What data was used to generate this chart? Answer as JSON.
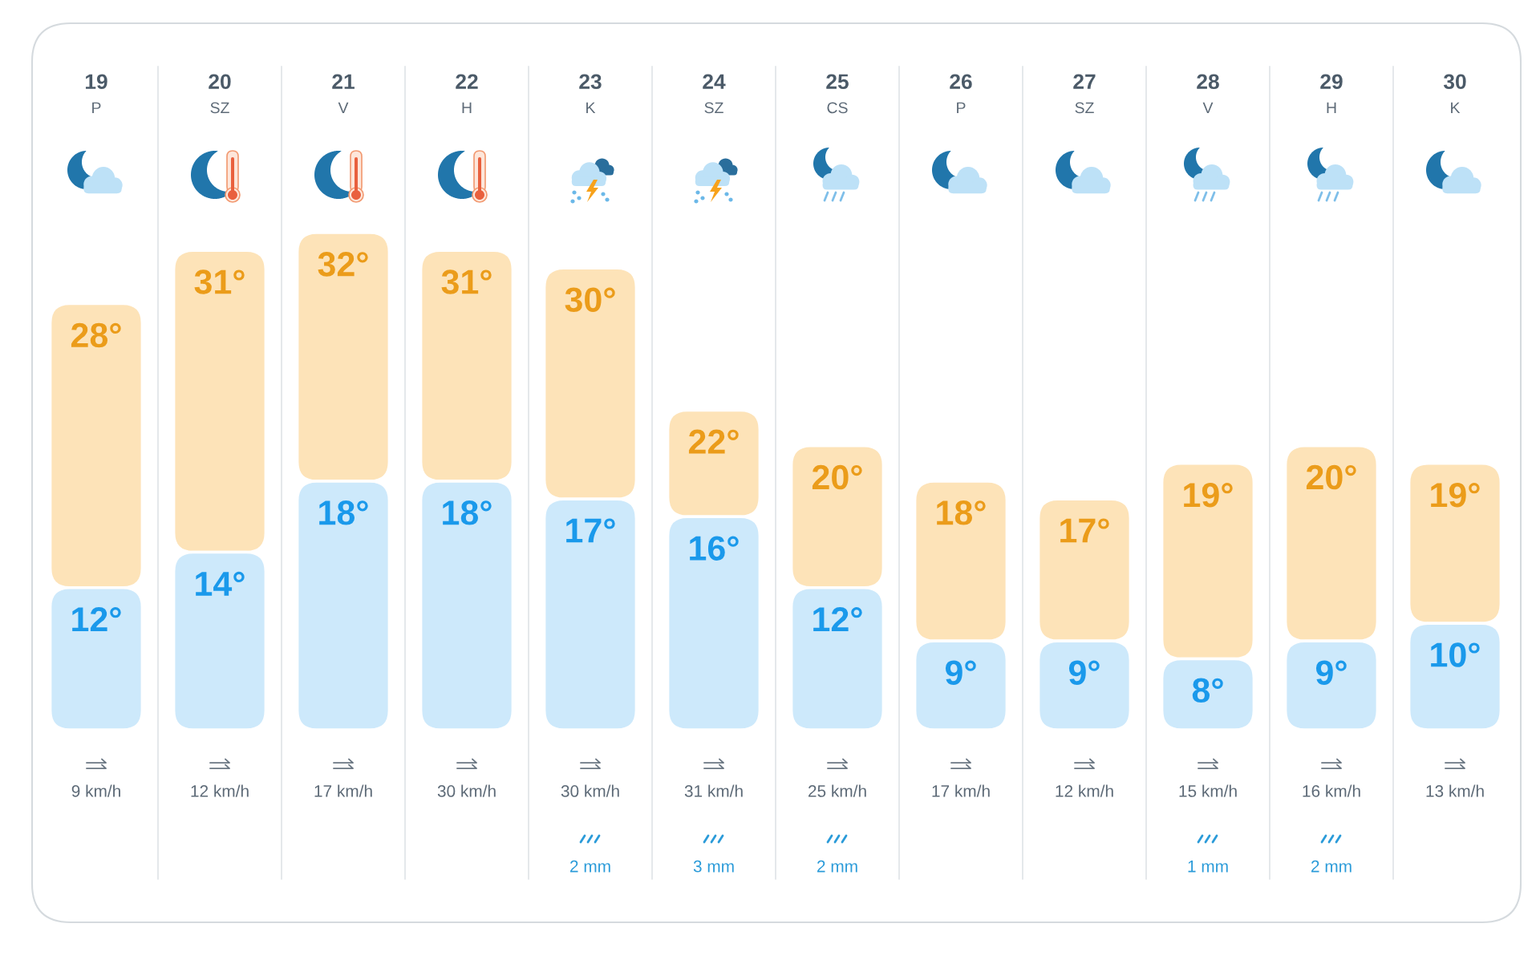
{
  "chart_data": [
    {
      "type": "bar",
      "stacked": true,
      "categories": [
        "19\nP",
        "20\nSZ",
        "21\nV",
        "22\nH",
        "23\nK",
        "24\nSZ",
        "25\nCS",
        "26\nP",
        "27\nSZ",
        "28\nV",
        "29\nH",
        "30\nK"
      ],
      "series": [
        {
          "color": "#cde9fb",
          "values": [
            12,
            14,
            18,
            18,
            17,
            16,
            12,
            9,
            9,
            8,
            9,
            10
          ],
          "value_labels": [
            "12°",
            "14°",
            "18°",
            "18°",
            "17°",
            "16°",
            "12°",
            "9°",
            "9°",
            "8°",
            "9°",
            "10°"
          ]
        },
        {
          "color": "#fde3b8",
          "values": [
            16,
            17,
            14,
            13,
            13,
            6,
            8,
            9,
            8,
            11,
            11,
            9
          ]
        }
      ],
      "totals": [
        "28°",
        "31°",
        "32°",
        "31°",
        "30°",
        "22°",
        "20°",
        "18°",
        "17°",
        "19°",
        "20°",
        "19°"
      ],
      "ylim": [
        4,
        32
      ],
      "tick_labels": "x"
    },
    {
      "type": "other",
      "categories": [
        "9 km/h",
        "12 km/h",
        "17 km/h",
        "30 km/h",
        "30 km/h",
        "31 km/h",
        "25 km/h",
        "17 km/h",
        "12 km/h",
        "15 km/h",
        "16 km/h",
        "13 km/h"
      ]
    },
    {
      "type": "other",
      "categories": [
        null,
        null,
        null,
        null,
        "2 mm",
        "3 mm",
        "2 mm",
        null,
        null,
        "1 mm",
        "2 mm",
        null
      ]
    }
  ]
}
